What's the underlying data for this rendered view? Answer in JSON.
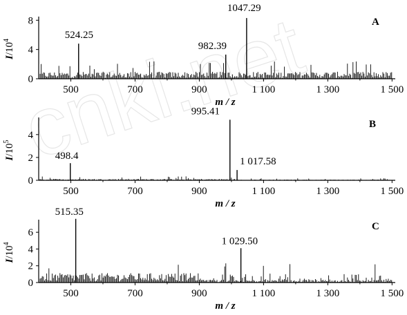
{
  "watermark": "cnki.net",
  "chart_data": [
    {
      "type": "bar",
      "panel_label": "A",
      "xlabel": "m/z",
      "ylabel_main": "I",
      "ylabel_unit": "/10",
      "ylabel_exp": "4",
      "xlim": [
        400,
        1510
      ],
      "ylim": [
        0,
        8.5
      ],
      "xticks": [
        500,
        700,
        900,
        1100,
        1300,
        1500
      ],
      "xtick_labels": [
        "500",
        "700",
        "900",
        "1 100",
        "1 300",
        "1 500"
      ],
      "yticks": [
        0,
        4,
        8
      ],
      "ytick_labels": [
        "0",
        "4",
        "8"
      ],
      "peaks": [
        {
          "x": 524.25,
          "y": 4.8,
          "label": "524.25"
        },
        {
          "x": 982.39,
          "y": 3.3,
          "label": "982.39"
        },
        {
          "x": 1047.29,
          "y": 8.3,
          "label": "1047.29"
        }
      ],
      "noise_max": 2.4,
      "noise_mean": 0.6
    },
    {
      "type": "bar",
      "panel_label": "B",
      "xlabel": "m/z",
      "ylabel_main": "I",
      "ylabel_unit": "/10",
      "ylabel_exp": "5",
      "xlim": [
        400,
        1510
      ],
      "ylim": [
        0,
        5.5
      ],
      "xticks": [
        500,
        700,
        900,
        1100,
        1300,
        1500
      ],
      "xtick_labels": [
        "500",
        "700",
        "900",
        "1 100",
        "1 300",
        "1 500"
      ],
      "yticks": [
        0,
        2,
        4
      ],
      "ytick_labels": [
        "0",
        "2",
        "4"
      ],
      "peaks": [
        {
          "x": 498.4,
          "y": 1.5,
          "label": "498.4"
        },
        {
          "x": 995.41,
          "y": 5.3,
          "label": "995.41"
        },
        {
          "x": 1017.58,
          "y": 0.9,
          "label": "1 017.58"
        }
      ],
      "noise_max": 0.35,
      "noise_mean": 0.08
    },
    {
      "type": "bar",
      "panel_label": "C",
      "xlabel": "m/z",
      "ylabel_main": "I",
      "ylabel_unit": "/10",
      "ylabel_exp": "4",
      "xlim": [
        400,
        1510
      ],
      "ylim": [
        0,
        7.5
      ],
      "xticks": [
        500,
        700,
        900,
        1100,
        1300,
        1500
      ],
      "xtick_labels": [
        "500",
        "700",
        "900",
        "1 100",
        "1 300",
        "1 500"
      ],
      "yticks": [
        0,
        2,
        4,
        6
      ],
      "ytick_labels": [
        "0",
        "2",
        "4",
        "6"
      ],
      "peaks": [
        {
          "x": 515.35,
          "y": 7.6,
          "label": "515.35"
        },
        {
          "x": 1029.5,
          "y": 4.1,
          "label": "1 029.50"
        }
      ],
      "noise_max": 2.5,
      "noise_mean": 0.7
    }
  ]
}
